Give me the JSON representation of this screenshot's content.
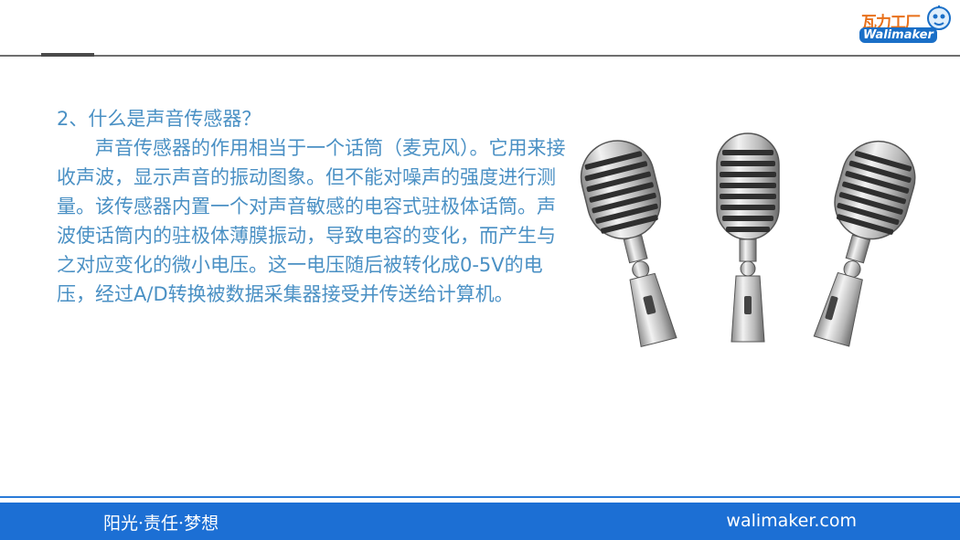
{
  "header": {
    "logo_cn": "瓦力工厂",
    "logo_en": "Walimaker"
  },
  "content": {
    "heading": "2、什么是声音传感器？",
    "paragraph": "声音传感器的作用相当于一个话筒（麦克风）。它用来接收声波，显示声音的振动图象。但不能对噪声的强度进行测量。该传感器内置一个对声音敏感的电容式驻极体话筒。声波使话筒内的驻极体薄膜振动，导致电容的变化，而产生与之对应变化的微小电压。这一电压随后被转化成0-5V的电压，经过A/D转换被数据采集器接受并传送给计算机。"
  },
  "image": {
    "icon": "microphone-icon"
  },
  "footer": {
    "slogan": "阳光·责任·梦想",
    "website": "walimaker.com"
  },
  "colors": {
    "text_blue": "#4a90c4",
    "footer_blue": "#1c6fd4",
    "logo_orange": "#e8701a"
  }
}
